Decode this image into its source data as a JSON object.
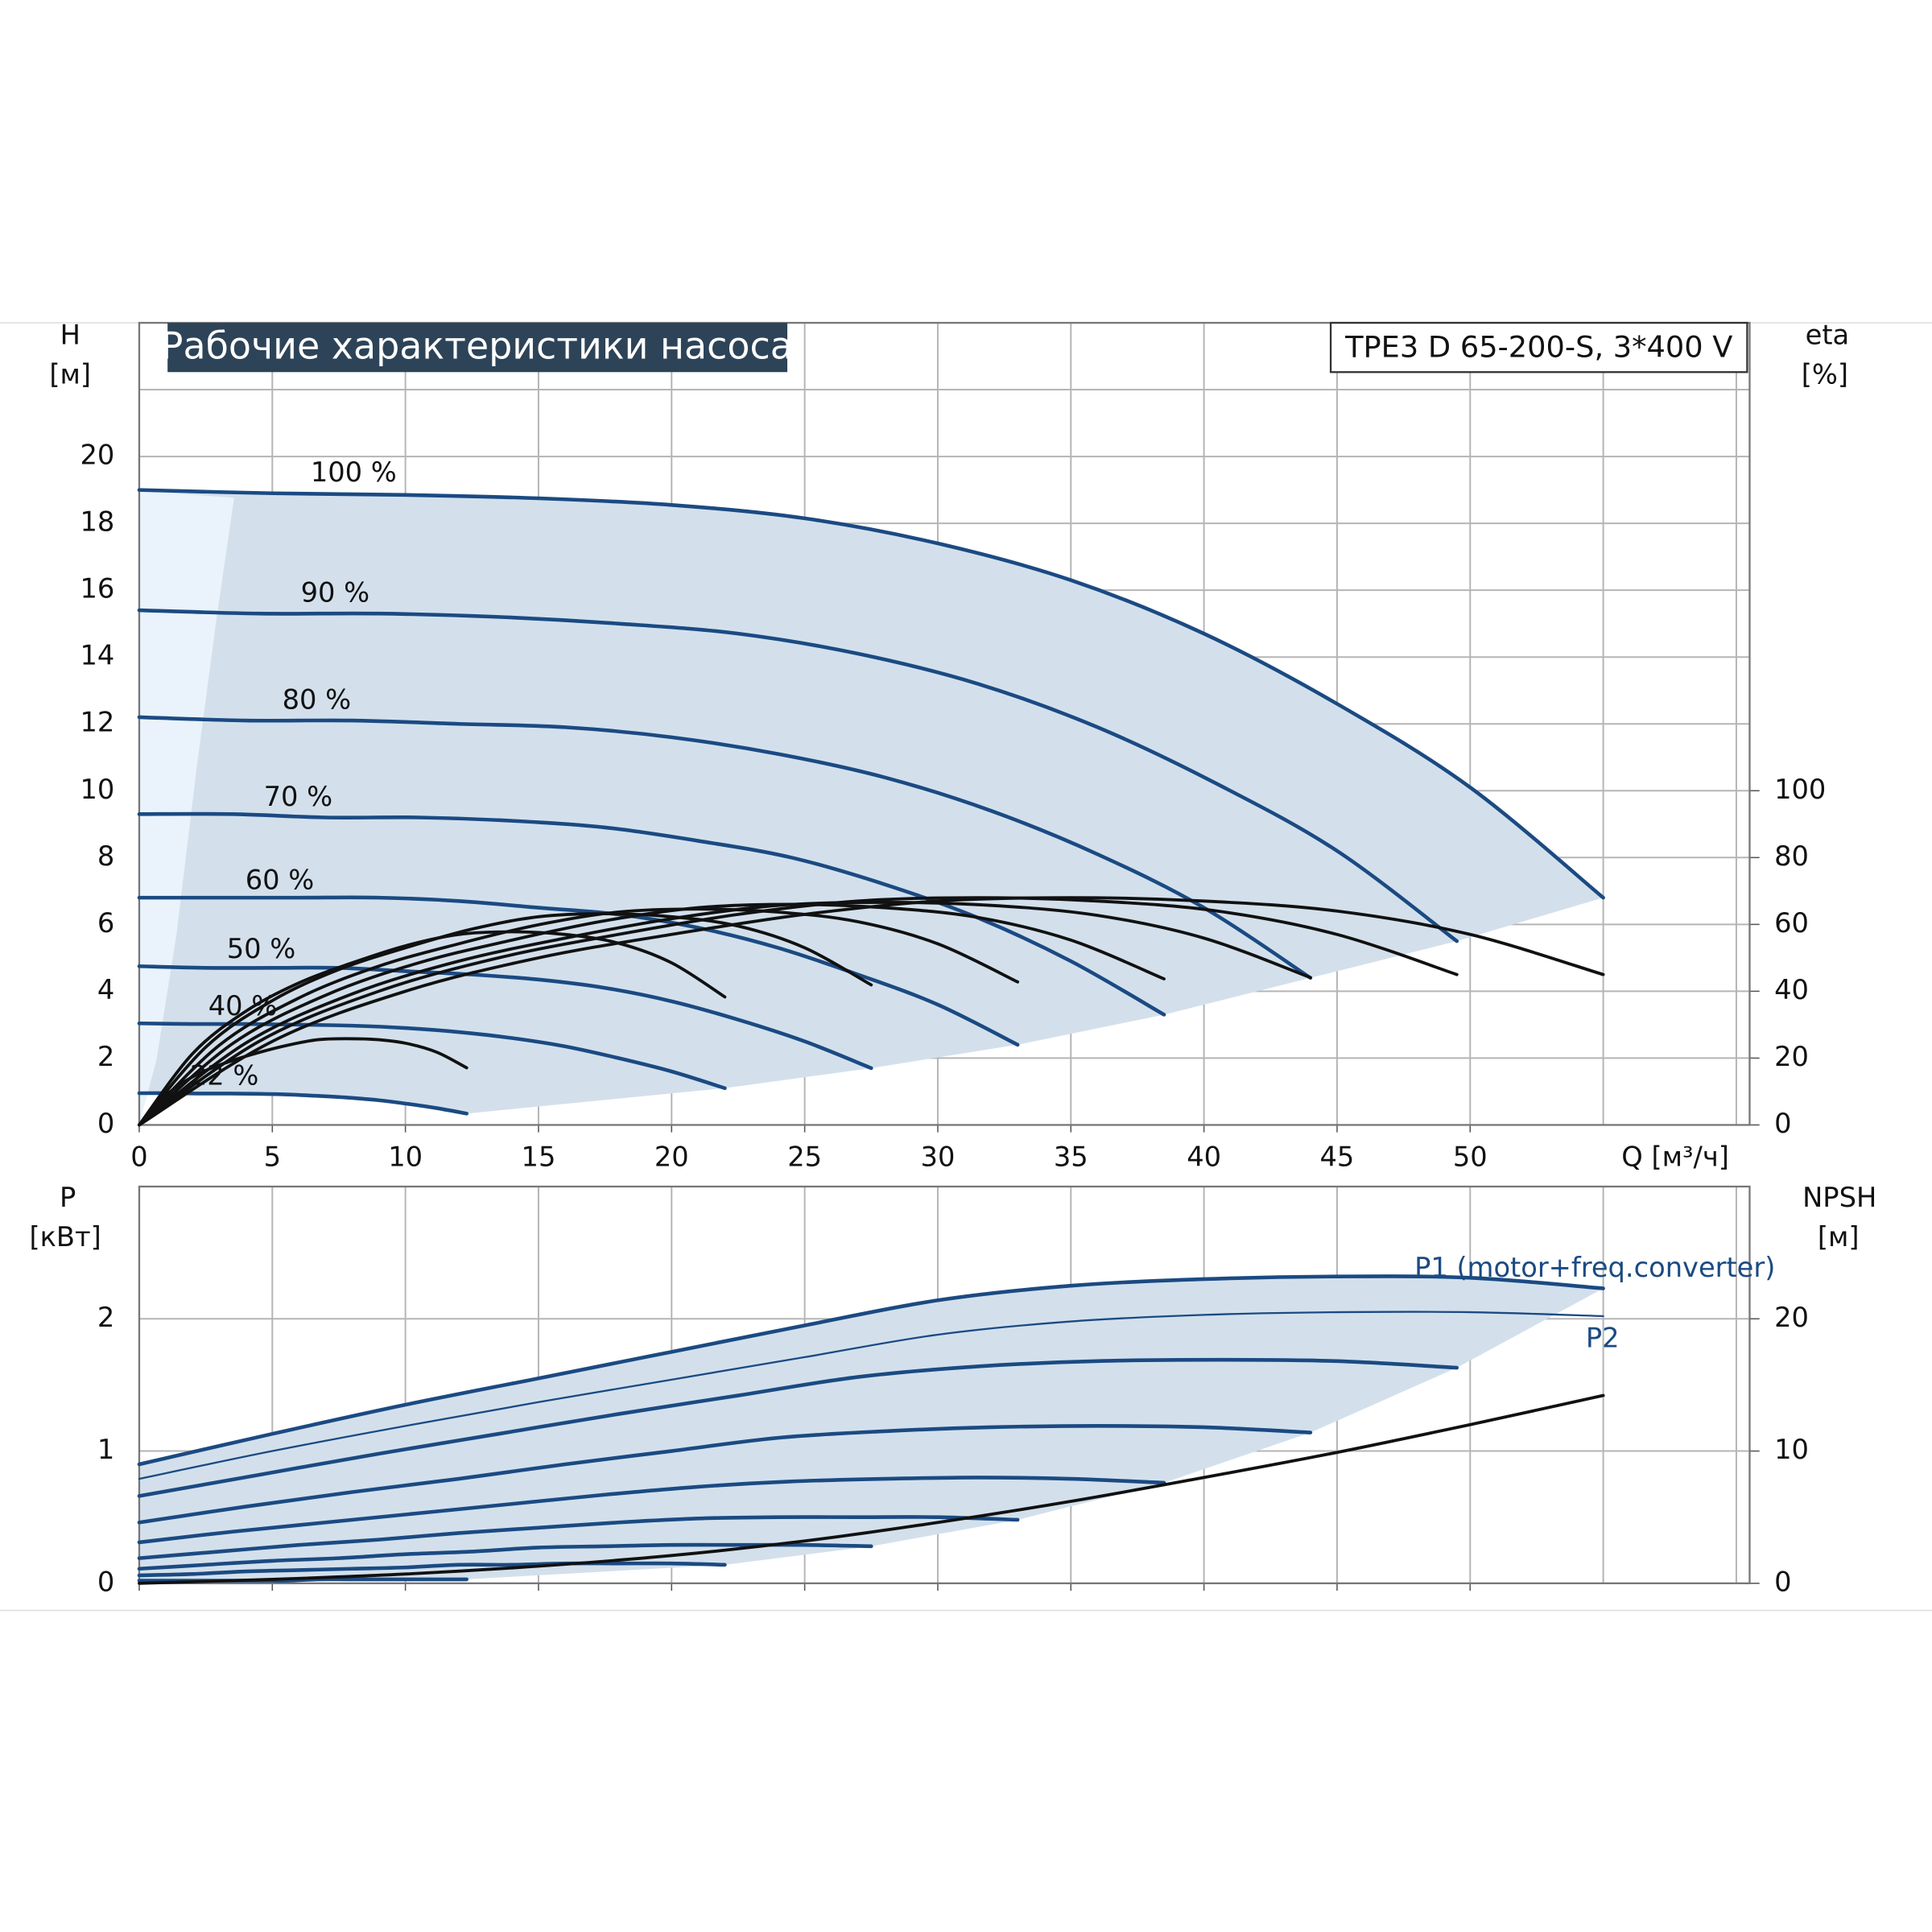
{
  "chart_data": [
    {
      "type": "line",
      "title": "Рабочие характеристики насоса",
      "subtitle": "TPE3 D 65-200-S, 3*400 V",
      "xlabel": "Q [м³/ч]",
      "ylabel": "H",
      "yunit": "[м]",
      "y2label": "eta",
      "y2unit": "[%]",
      "xlim": [
        0,
        60.5
      ],
      "ylim": [
        0,
        24
      ],
      "y2lim": [
        0,
        240
      ],
      "grid": true,
      "xticks": [
        0,
        5,
        10,
        15,
        20,
        25,
        30,
        35,
        40,
        45,
        50
      ],
      "yticks": [
        0,
        2,
        4,
        6,
        8,
        10,
        12,
        14,
        16,
        18,
        20
      ],
      "y2ticks": [
        0,
        20,
        40,
        60,
        80,
        100
      ],
      "series": [
        {
          "name": "100 %",
          "color": "#1b4a82",
          "width": 3,
          "x": [
            0,
            5,
            10,
            15,
            20,
            25,
            30,
            35,
            40,
            45,
            50,
            55
          ],
          "values": [
            19.0,
            18.9,
            18.85,
            18.75,
            18.55,
            18.15,
            17.4,
            16.3,
            14.7,
            12.6,
            10.1,
            6.8
          ]
        },
        {
          "name": "90 %",
          "color": "#1b4a82",
          "width": 3,
          "x": [
            0,
            4.5,
            9,
            13.5,
            18,
            22.5,
            27,
            31.5,
            36,
            40.5,
            45,
            49.5
          ],
          "values": [
            15.4,
            15.3,
            15.3,
            15.2,
            15.0,
            14.7,
            14.1,
            13.2,
            11.9,
            10.2,
            8.2,
            5.5
          ]
        },
        {
          "name": "80 %",
          "color": "#1b4a82",
          "width": 3,
          "x": [
            0,
            4,
            8,
            12,
            16,
            20,
            24,
            28,
            32,
            36,
            40,
            44
          ],
          "values": [
            12.2,
            12.1,
            12.1,
            12.0,
            11.9,
            11.6,
            11.1,
            10.4,
            9.4,
            8.1,
            6.5,
            4.4
          ]
        },
        {
          "name": "70 %",
          "color": "#1b4a82",
          "width": 3,
          "x": [
            0,
            3.5,
            7,
            10.5,
            14,
            17.5,
            21,
            24.5,
            28,
            31.5,
            35,
            38.5
          ],
          "values": [
            9.3,
            9.3,
            9.2,
            9.2,
            9.1,
            8.9,
            8.5,
            8.0,
            7.2,
            6.2,
            4.9,
            3.3
          ]
        },
        {
          "name": "60 %",
          "color": "#1b4a82",
          "width": 3,
          "x": [
            0,
            3,
            6,
            9,
            12,
            15,
            18,
            21,
            24,
            27,
            30,
            33
          ],
          "values": [
            6.8,
            6.8,
            6.8,
            6.8,
            6.7,
            6.5,
            6.3,
            5.9,
            5.3,
            4.5,
            3.6,
            2.4
          ]
        },
        {
          "name": "50 %",
          "color": "#1b4a82",
          "width": 3,
          "x": [
            0,
            2.5,
            5,
            7.5,
            10,
            12.5,
            15,
            17.5,
            20,
            22.5,
            25,
            27.5
          ],
          "values": [
            4.75,
            4.7,
            4.7,
            4.7,
            4.6,
            4.5,
            4.35,
            4.1,
            3.7,
            3.15,
            2.5,
            1.7
          ]
        },
        {
          "name": "40 %",
          "color": "#1b4a82",
          "width": 3,
          "x": [
            0,
            2,
            4,
            6,
            8,
            10,
            12,
            14,
            16,
            18,
            20,
            22
          ],
          "values": [
            3.04,
            3.02,
            3.02,
            3.0,
            2.97,
            2.9,
            2.78,
            2.6,
            2.35,
            2.0,
            1.6,
            1.1
          ]
        },
        {
          "name": "22 %",
          "color": "#1b4a82",
          "width": 3,
          "x": [
            0,
            1.1,
            2.2,
            3.4,
            4.5,
            5.6,
            6.7,
            7.8,
            9,
            10.1,
            11.2,
            12.3
          ],
          "values": [
            0.95,
            0.95,
            0.94,
            0.94,
            0.93,
            0.91,
            0.87,
            0.82,
            0.74,
            0.63,
            0.5,
            0.34
          ]
        },
        {
          "axis": "y2",
          "color": "#111111",
          "width": 2.5,
          "x": [
            0,
            5,
            10,
            15,
            20,
            25,
            30,
            35,
            40,
            45,
            50,
            55
          ],
          "values": [
            0,
            25,
            40,
            50,
            57,
            63,
            67,
            68,
            67,
            64,
            57,
            45
          ]
        },
        {
          "axis": "y2",
          "color": "#111111",
          "width": 2.5,
          "x": [
            0,
            4.5,
            9,
            13.5,
            18,
            22.5,
            27,
            31.5,
            36,
            40.5,
            45,
            49.5
          ],
          "values": [
            0,
            25,
            40,
            50,
            57,
            63,
            67,
            68,
            67,
            64,
            57,
            45
          ]
        },
        {
          "axis": "y2",
          "color": "#111111",
          "width": 2.5,
          "x": [
            0,
            4,
            8,
            12,
            16,
            20,
            24,
            28,
            32,
            36,
            40,
            44
          ],
          "values": [
            0,
            24.5,
            39.2,
            49,
            55.9,
            61.7,
            65.7,
            66.6,
            65.7,
            62.7,
            55.9,
            44.1
          ]
        },
        {
          "axis": "y2",
          "color": "#111111",
          "width": 2.5,
          "x": [
            0,
            3.5,
            7,
            10.5,
            14,
            17.5,
            21,
            24.5,
            28,
            31.5,
            35,
            38.5
          ],
          "values": [
            0,
            24.3,
            38.8,
            48.5,
            55.3,
            61.1,
            65,
            66,
            65,
            62.1,
            55.3,
            43.7
          ]
        },
        {
          "axis": "y2",
          "color": "#111111",
          "width": 2.5,
          "x": [
            0,
            3,
            6,
            9,
            12,
            15,
            18,
            21,
            24,
            27,
            30,
            33
          ],
          "values": [
            0,
            23.8,
            38,
            47.5,
            54.2,
            59.9,
            63.7,
            64.6,
            63.7,
            60.8,
            54.2,
            42.8
          ]
        },
        {
          "axis": "y2",
          "color": "#111111",
          "width": 2.5,
          "x": [
            0,
            2.5,
            5,
            7.5,
            10,
            12.5,
            15,
            17.5,
            20,
            22.5,
            25,
            27.5
          ],
          "values": [
            0,
            23.3,
            37.2,
            46.5,
            53,
            58.6,
            62.3,
            63.2,
            62.3,
            59.5,
            53,
            41.9
          ]
        },
        {
          "axis": "y2",
          "color": "#111111",
          "width": 2.5,
          "x": [
            0,
            2,
            4,
            6,
            8,
            10,
            12,
            14,
            16,
            18,
            20,
            22
          ],
          "values": [
            0,
            21.3,
            34,
            42.5,
            48.5,
            53.6,
            57,
            57.8,
            57,
            54.4,
            48.5,
            38.3
          ]
        },
        {
          "axis": "y2",
          "color": "#111111",
          "width": 2.5,
          "x": [
            0,
            1.1,
            2.2,
            3.4,
            4.5,
            5.6,
            6.7,
            7.8,
            9,
            10.1,
            11.2,
            12.3
          ],
          "values": [
            0,
            9.5,
            15.2,
            19,
            21.7,
            23.9,
            25.5,
            25.8,
            25.5,
            24.3,
            21.7,
            17.1
          ]
        }
      ]
    },
    {
      "type": "line",
      "ylabel": "P",
      "yunit": "[кВт]",
      "y2label": "NPSH",
      "y2unit": "[м]",
      "xlim": [
        0,
        60.5
      ],
      "ylim": [
        0,
        3
      ],
      "y2lim": [
        0,
        30
      ],
      "grid": true,
      "show_xtick_labels": false,
      "xticks": [
        0,
        5,
        10,
        15,
        20,
        25,
        30,
        35,
        40,
        45,
        50
      ],
      "yticks": [
        0,
        1,
        2
      ],
      "y2ticks": [
        0,
        10,
        20
      ],
      "series": [
        {
          "name": "P1 (motor+freq.converter)",
          "color": "#1b4a82",
          "width": 3,
          "x": [
            0,
            5,
            10,
            15,
            20,
            25,
            30,
            35,
            40,
            45,
            50,
            55
          ],
          "values": [
            0.9,
            1.13,
            1.35,
            1.55,
            1.75,
            1.95,
            2.14,
            2.25,
            2.3,
            2.32,
            2.31,
            2.23
          ]
        },
        {
          "color": "#1b4a82",
          "width": 3,
          "x": [
            0,
            4.5,
            9,
            13.5,
            18,
            22.5,
            27,
            31.5,
            36,
            40.5,
            45,
            49.5
          ],
          "values": [
            0.66,
            0.82,
            0.98,
            1.13,
            1.28,
            1.42,
            1.56,
            1.64,
            1.68,
            1.69,
            1.68,
            1.63
          ]
        },
        {
          "color": "#1b4a82",
          "width": 3,
          "x": [
            0,
            4,
            8,
            12,
            16,
            20,
            24,
            28,
            32,
            36,
            40,
            44
          ],
          "values": [
            0.46,
            0.58,
            0.69,
            0.79,
            0.9,
            1.0,
            1.1,
            1.15,
            1.18,
            1.19,
            1.18,
            1.14
          ]
        },
        {
          "color": "#1b4a82",
          "width": 3,
          "x": [
            0,
            3.5,
            7,
            10.5,
            14,
            17.5,
            21,
            24.5,
            28,
            31.5,
            35,
            38.5
          ],
          "values": [
            0.31,
            0.39,
            0.46,
            0.53,
            0.6,
            0.67,
            0.73,
            0.77,
            0.79,
            0.8,
            0.79,
            0.76
          ]
        },
        {
          "color": "#1b4a82",
          "width": 3,
          "x": [
            0,
            3,
            6,
            9,
            12,
            15,
            18,
            21,
            24,
            27,
            30,
            33
          ],
          "values": [
            0.19,
            0.24,
            0.29,
            0.33,
            0.38,
            0.42,
            0.46,
            0.49,
            0.5,
            0.5,
            0.5,
            0.48
          ]
        },
        {
          "color": "#1b4a82",
          "width": 3,
          "x": [
            0,
            2.5,
            5,
            7.5,
            10,
            12.5,
            15,
            17.5,
            20,
            22.5,
            25,
            27.5
          ],
          "values": [
            0.11,
            0.14,
            0.17,
            0.19,
            0.22,
            0.24,
            0.27,
            0.28,
            0.29,
            0.29,
            0.29,
            0.28
          ]
        },
        {
          "color": "#1b4a82",
          "width": 3,
          "x": [
            0,
            2,
            4,
            6,
            8,
            10,
            12,
            14,
            16,
            18,
            20,
            22
          ],
          "values": [
            0.06,
            0.07,
            0.09,
            0.1,
            0.11,
            0.12,
            0.14,
            0.14,
            0.15,
            0.15,
            0.15,
            0.14
          ]
        },
        {
          "color": "#1b4a82",
          "width": 3,
          "x": [
            0,
            1.1,
            2.2,
            3.4,
            4.5,
            5.6,
            6.7,
            7.8,
            9,
            10.1,
            11.2,
            12.3
          ],
          "values": [
            0.02,
            0.02,
            0.02,
            0.02,
            0.02,
            0.02,
            0.03,
            0.03,
            0.03,
            0.03,
            0.03,
            0.03
          ]
        },
        {
          "name": "P2",
          "color": "#1b4a82",
          "width": 1.5,
          "x": [
            0,
            5,
            10,
            15,
            20,
            25,
            30,
            35,
            40,
            45,
            50,
            55
          ],
          "values": [
            0.79,
            1.0,
            1.19,
            1.37,
            1.54,
            1.71,
            1.88,
            1.98,
            2.03,
            2.05,
            2.05,
            2.02
          ]
        },
        {
          "axis": "y2",
          "color": "#111111",
          "width": 2.5,
          "x": [
            0,
            5,
            10,
            15,
            20,
            25,
            30,
            35,
            40,
            45,
            50,
            55
          ],
          "values": [
            0,
            0.3,
            0.7,
            1.3,
            2.1,
            3.2,
            4.6,
            6.2,
            8.0,
            9.9,
            12.0,
            14.2
          ]
        }
      ]
    }
  ]
}
